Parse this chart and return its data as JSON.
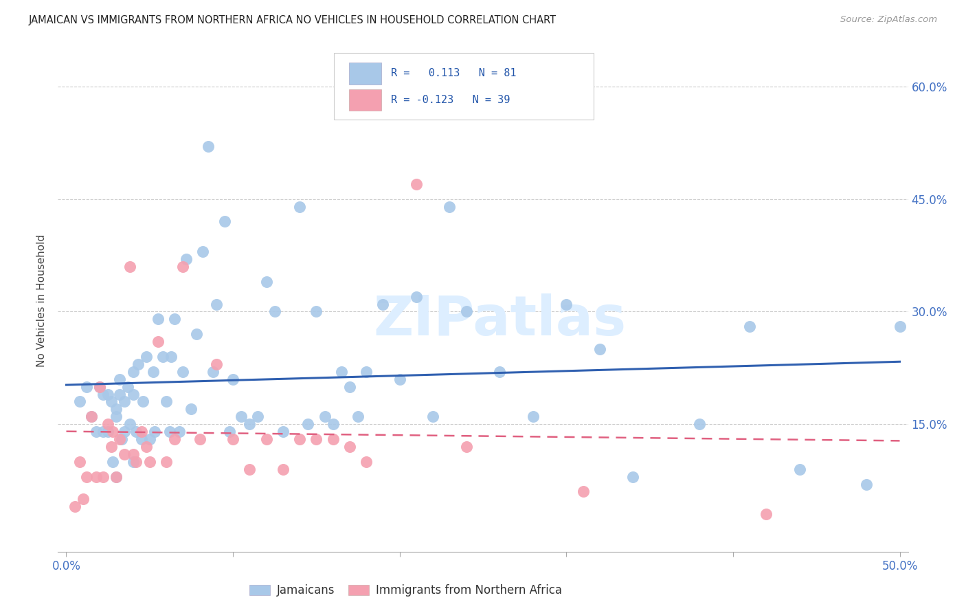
{
  "title": "JAMAICAN VS IMMIGRANTS FROM NORTHERN AFRICA NO VEHICLES IN HOUSEHOLD CORRELATION CHART",
  "source": "Source: ZipAtlas.com",
  "ylabel": "No Vehicles in Household",
  "xlim": [
    -0.005,
    0.505
  ],
  "ylim": [
    -0.02,
    0.65
  ],
  "ytick_labels": [
    "15.0%",
    "30.0%",
    "45.0%",
    "60.0%"
  ],
  "ytick_values": [
    0.15,
    0.3,
    0.45,
    0.6
  ],
  "xtick_values": [
    0.0,
    0.1,
    0.2,
    0.3,
    0.4,
    0.5
  ],
  "xtick_labels": [
    "0.0%",
    "",
    "",
    "",
    "",
    "50.0%"
  ],
  "series1_name": "Jamaicans",
  "series2_name": "Immigrants from Northern Africa",
  "series1_color": "#a8c8e8",
  "series2_color": "#f4a0b0",
  "line1_color": "#3060b0",
  "line2_color": "#e06080",
  "watermark_color": "#ddeeff",
  "r1": 0.113,
  "n1": 81,
  "r2": -0.123,
  "n2": 39,
  "jamaicans_x": [
    0.008,
    0.012,
    0.015,
    0.018,
    0.02,
    0.022,
    0.022,
    0.025,
    0.025,
    0.027,
    0.028,
    0.03,
    0.03,
    0.03,
    0.032,
    0.032,
    0.033,
    0.035,
    0.035,
    0.037,
    0.038,
    0.04,
    0.04,
    0.04,
    0.042,
    0.043,
    0.045,
    0.046,
    0.048,
    0.05,
    0.052,
    0.053,
    0.055,
    0.058,
    0.06,
    0.062,
    0.063,
    0.065,
    0.068,
    0.07,
    0.072,
    0.075,
    0.078,
    0.082,
    0.085,
    0.088,
    0.09,
    0.095,
    0.098,
    0.1,
    0.105,
    0.11,
    0.115,
    0.12,
    0.125,
    0.13,
    0.14,
    0.145,
    0.15,
    0.155,
    0.16,
    0.165,
    0.17,
    0.175,
    0.18,
    0.19,
    0.2,
    0.21,
    0.22,
    0.23,
    0.24,
    0.26,
    0.28,
    0.3,
    0.32,
    0.34,
    0.38,
    0.41,
    0.44,
    0.48,
    0.5
  ],
  "jamaicans_y": [
    0.18,
    0.2,
    0.16,
    0.14,
    0.2,
    0.19,
    0.14,
    0.19,
    0.14,
    0.18,
    0.1,
    0.17,
    0.16,
    0.08,
    0.19,
    0.21,
    0.13,
    0.14,
    0.18,
    0.2,
    0.15,
    0.1,
    0.19,
    0.22,
    0.14,
    0.23,
    0.13,
    0.18,
    0.24,
    0.13,
    0.22,
    0.14,
    0.29,
    0.24,
    0.18,
    0.14,
    0.24,
    0.29,
    0.14,
    0.22,
    0.37,
    0.17,
    0.27,
    0.38,
    0.52,
    0.22,
    0.31,
    0.42,
    0.14,
    0.21,
    0.16,
    0.15,
    0.16,
    0.34,
    0.3,
    0.14,
    0.44,
    0.15,
    0.3,
    0.16,
    0.15,
    0.22,
    0.2,
    0.16,
    0.22,
    0.31,
    0.21,
    0.32,
    0.16,
    0.44,
    0.3,
    0.22,
    0.16,
    0.31,
    0.25,
    0.08,
    0.15,
    0.28,
    0.09,
    0.07,
    0.28
  ],
  "northern_africa_x": [
    0.005,
    0.008,
    0.01,
    0.012,
    0.015,
    0.018,
    0.02,
    0.022,
    0.025,
    0.027,
    0.028,
    0.03,
    0.032,
    0.035,
    0.038,
    0.04,
    0.042,
    0.045,
    0.048,
    0.05,
    0.055,
    0.06,
    0.065,
    0.07,
    0.08,
    0.09,
    0.1,
    0.11,
    0.12,
    0.13,
    0.14,
    0.15,
    0.16,
    0.17,
    0.18,
    0.21,
    0.24,
    0.31,
    0.42
  ],
  "northern_africa_y": [
    0.04,
    0.1,
    0.05,
    0.08,
    0.16,
    0.08,
    0.2,
    0.08,
    0.15,
    0.12,
    0.14,
    0.08,
    0.13,
    0.11,
    0.36,
    0.11,
    0.1,
    0.14,
    0.12,
    0.1,
    0.26,
    0.1,
    0.13,
    0.36,
    0.13,
    0.23,
    0.13,
    0.09,
    0.13,
    0.09,
    0.13,
    0.13,
    0.13,
    0.12,
    0.1,
    0.47,
    0.12,
    0.06,
    0.03
  ]
}
